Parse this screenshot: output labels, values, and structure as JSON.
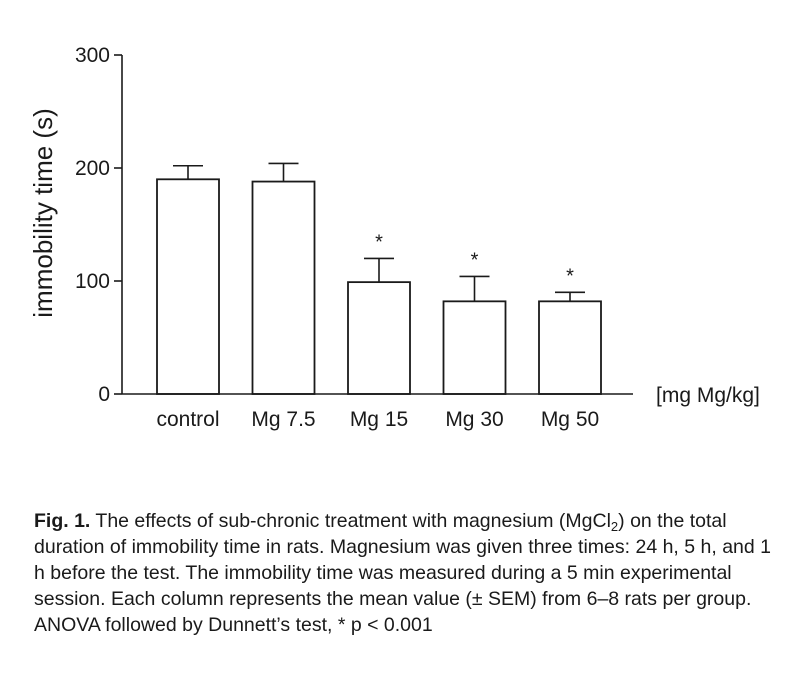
{
  "chart_data": {
    "type": "bar",
    "categories": [
      "control",
      "Mg 7.5",
      "Mg 15",
      "Mg 30",
      "Mg 50"
    ],
    "values": [
      190,
      188,
      99,
      82,
      82
    ],
    "sem": [
      12,
      16,
      21,
      22,
      8
    ],
    "significance": [
      "",
      "",
      "*",
      "*",
      "*"
    ],
    "ylabel": "immobility time (s)",
    "xunit": "[mg Mg/kg]",
    "yticks": [
      0,
      100,
      200,
      300
    ],
    "ylim": [
      0,
      300
    ],
    "grid": false,
    "bar_fill": "#ffffff",
    "bar_stroke": "#1a1a1a"
  },
  "caption": {
    "label": "Fig. 1.",
    "text_before_sub": " The effects of sub-chronic treatment with magnesium (MgCl",
    "subscript": "2",
    "text_after_sub": ") on the total duration of immobility time in rats. Magnesium was given three times: 24 h, 5 h, and 1 h before the test. The immobility time was measured during a 5 min experimental session. Each column represents the mean value (± SEM) from 6–8 rats per group. ANOVA followed by Dunnett’s test, * p < 0.001"
  }
}
